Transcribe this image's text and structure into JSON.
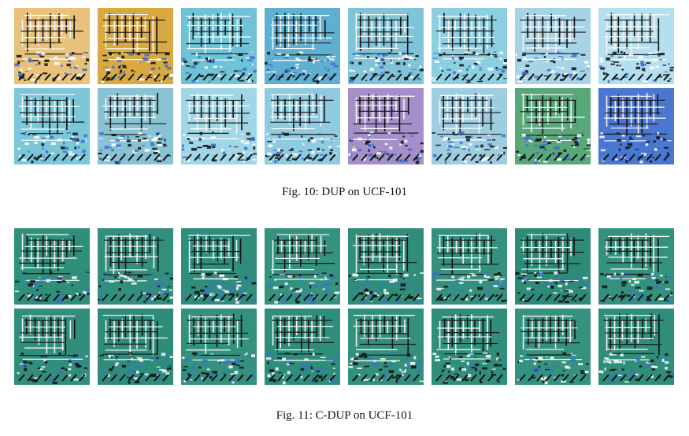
{
  "figures": [
    {
      "id": "fig10",
      "caption": "Fig. 10: DUP on UCF-101",
      "rows": [
        [
          "#e8c27a",
          "#d9a941",
          "#6ec3d6",
          "#5fb0d0",
          "#7fc4d8",
          "#8ccfe0",
          "#a6d3e6",
          "#b3dfef"
        ],
        [
          "#7bc7d9",
          "#89c3d3",
          "#9fd7e6",
          "#8fcbe0",
          "#a58fc9",
          "#9fcde0",
          "#58a87a",
          "#4a77d1"
        ]
      ]
    },
    {
      "id": "fig11",
      "caption": "Fig. 11: C-DUP on UCF-101",
      "rows": [
        [
          "#2e8f7a",
          "#338f7d",
          "#2f8d7c",
          "#34927f",
          "#2f8d7a",
          "#35917e",
          "#2d8b78",
          "#33917d"
        ],
        [
          "#318e7c",
          "#2f8c7a",
          "#34917e",
          "#2e8d7b",
          "#33907d",
          "#308e7b",
          "#35927f",
          "#2f8d7a"
        ]
      ]
    }
  ]
}
